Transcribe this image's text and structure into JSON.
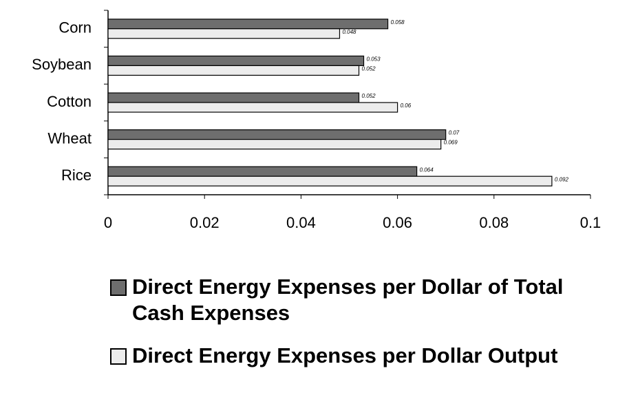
{
  "chart_data": {
    "type": "bar",
    "orientation": "horizontal",
    "categories": [
      "Corn",
      "Soybean",
      "Cotton",
      "Wheat",
      "Rice"
    ],
    "series": [
      {
        "name": "Direct Energy Expenses per Dollar of Total Cash Expenses",
        "color": "#6e6e6e",
        "values": [
          0.058,
          0.053,
          0.052,
          0.07,
          0.064
        ]
      },
      {
        "name": "Direct Energy Expenses per Dollar Output",
        "color": "#ececec",
        "values": [
          0.048,
          0.052,
          0.06,
          0.069,
          0.092
        ]
      }
    ],
    "xlim": [
      0,
      0.1
    ],
    "xticks": [
      0,
      0.02,
      0.04,
      0.06,
      0.08,
      0.1
    ]
  }
}
